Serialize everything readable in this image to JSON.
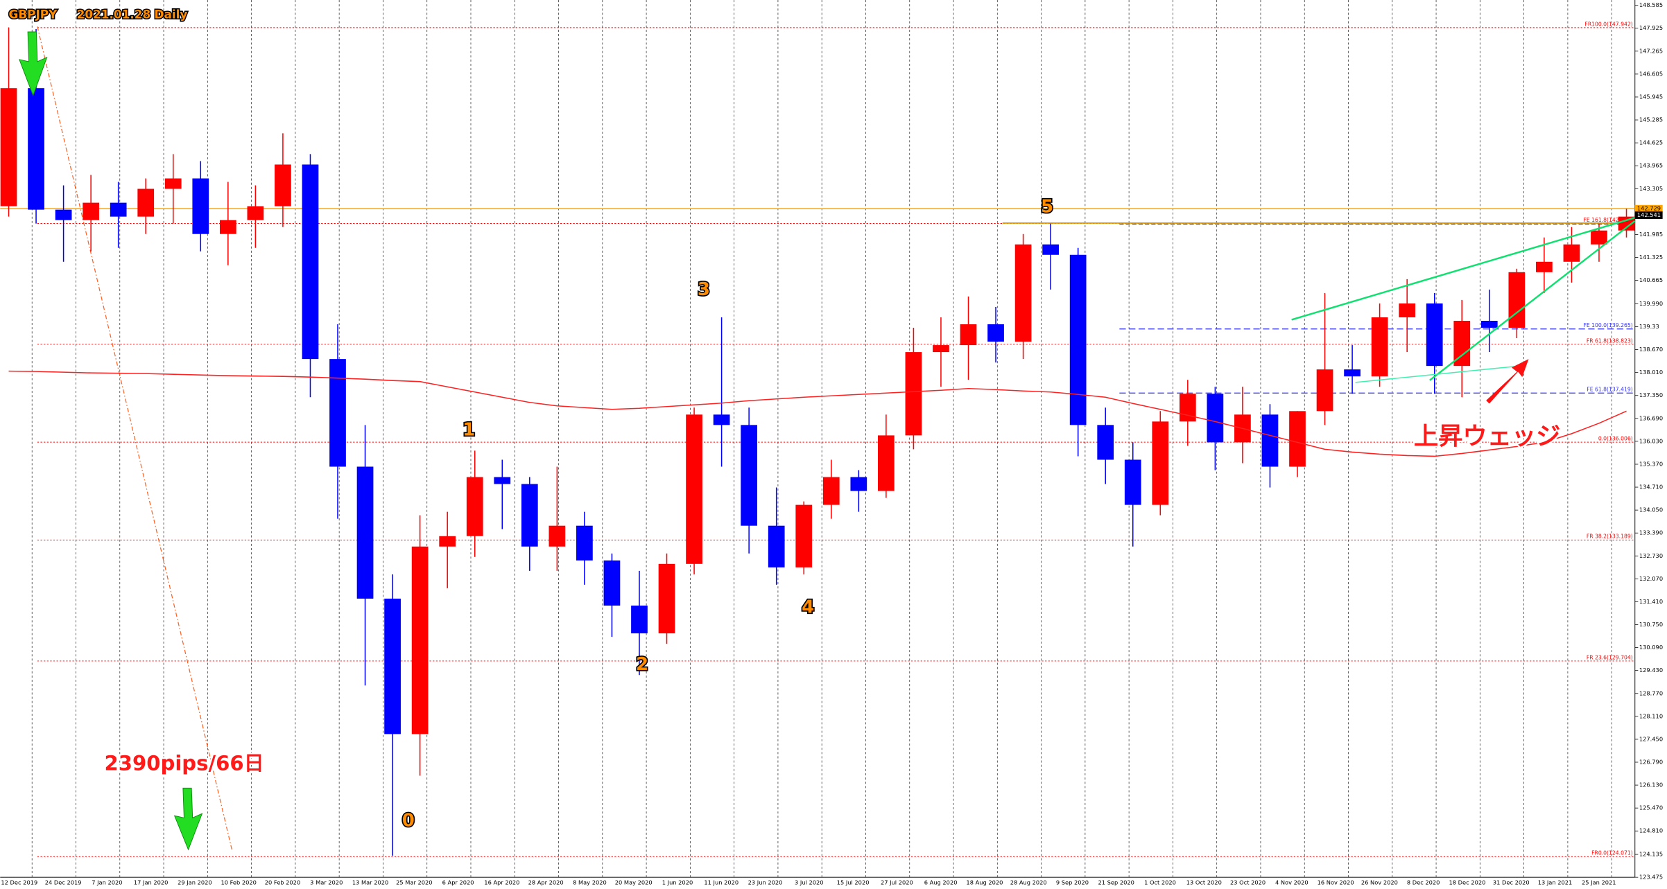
{
  "chart_data": {
    "type": "candlestick",
    "title_parts": [
      "GBPJPY",
      "2021.01.28",
      "Daily"
    ],
    "open": [
      142.8,
      146.2,
      142.7,
      142.4,
      142.9,
      142.5,
      143.3,
      143.6,
      142.0,
      142.4,
      142.8,
      144.0,
      138.4,
      135.3,
      131.5,
      127.6,
      133.0,
      133.3,
      135.0,
      134.8,
      133.0,
      133.6,
      132.6,
      131.3,
      130.5,
      132.5,
      136.8,
      136.5,
      133.6,
      132.4,
      134.2,
      135.0,
      134.6,
      136.2,
      138.6,
      138.8,
      139.4,
      138.9,
      141.7,
      141.4,
      136.5,
      135.5,
      134.2,
      136.6,
      137.4,
      136.0,
      136.8,
      135.3,
      136.9,
      138.1,
      137.9,
      139.6,
      140.0,
      138.2,
      139.5,
      139.3,
      140.9,
      141.2,
      141.7,
      142.1
    ],
    "high": [
      147.95,
      147.9,
      143.4,
      143.7,
      143.5,
      143.6,
      144.3,
      144.1,
      143.5,
      143.4,
      144.9,
      144.3,
      139.4,
      136.5,
      132.2,
      133.9,
      134.0,
      135.76,
      135.5,
      135.0,
      135.3,
      134.0,
      132.8,
      132.3,
      132.8,
      137.0,
      139.6,
      137.0,
      134.7,
      134.3,
      135.5,
      135.2,
      136.8,
      139.3,
      139.6,
      140.2,
      139.9,
      142.0,
      142.3,
      141.6,
      137.0,
      136.0,
      136.9,
      137.8,
      137.6,
      137.6,
      137.1,
      136.9,
      140.3,
      138.8,
      140.0,
      140.7,
      140.3,
      140.1,
      140.4,
      141.0,
      141.9,
      142.2,
      142.3,
      142.73
    ],
    "low": [
      142.5,
      142.3,
      141.2,
      141.5,
      141.6,
      142.0,
      142.3,
      141.5,
      141.1,
      141.6,
      142.2,
      137.3,
      133.8,
      129.0,
      124.1,
      126.4,
      131.8,
      132.7,
      133.5,
      132.3,
      132.3,
      131.9,
      130.4,
      129.3,
      130.2,
      132.2,
      135.3,
      132.8,
      131.9,
      132.2,
      133.8,
      134.0,
      134.4,
      135.8,
      137.6,
      137.8,
      138.3,
      138.4,
      140.4,
      135.6,
      134.8,
      133.0,
      133.9,
      135.9,
      135.2,
      135.4,
      134.7,
      135.0,
      136.5,
      137.4,
      137.6,
      138.6,
      137.4,
      137.3,
      138.6,
      139.0,
      140.3,
      140.6,
      141.2,
      141.9
    ],
    "close": [
      146.2,
      142.7,
      142.4,
      142.9,
      142.5,
      143.3,
      143.6,
      142.0,
      142.4,
      142.8,
      144.0,
      138.4,
      135.3,
      131.5,
      127.6,
      133.0,
      133.3,
      135.0,
      134.8,
      133.0,
      133.6,
      132.6,
      131.3,
      130.5,
      132.5,
      136.8,
      136.5,
      133.6,
      132.4,
      134.2,
      135.0,
      134.6,
      136.2,
      138.6,
      138.8,
      139.4,
      138.9,
      141.7,
      141.4,
      136.5,
      135.5,
      134.2,
      136.6,
      137.4,
      136.0,
      136.8,
      135.3,
      136.9,
      138.1,
      137.9,
      139.6,
      140.0,
      138.2,
      139.5,
      139.3,
      140.9,
      141.2,
      141.7,
      142.1,
      142.5
    ],
    "up_color": "#ff0000",
    "down_color": "#0000ff",
    "ma": {
      "color": "#ff2020",
      "values": [
        138.05,
        138.04,
        138.02,
        138.0,
        137.99,
        137.98,
        137.96,
        137.94,
        137.92,
        137.91,
        137.9,
        137.88,
        137.85,
        137.82,
        137.78,
        137.75,
        137.6,
        137.45,
        137.3,
        137.15,
        137.05,
        137.0,
        136.95,
        136.98,
        137.03,
        137.08,
        137.13,
        137.2,
        137.25,
        137.3,
        137.34,
        137.38,
        137.42,
        137.46,
        137.5,
        137.55,
        137.52,
        137.48,
        137.45,
        137.38,
        137.3,
        137.12,
        136.95,
        136.78,
        136.6,
        136.4,
        136.2,
        136.0,
        135.8,
        135.72,
        135.66,
        135.62,
        135.6,
        135.68,
        135.78,
        135.88,
        136.0,
        136.25,
        136.55,
        136.9
      ]
    },
    "xticks": [
      "12 Dec 2019",
      "24 Dec 2019",
      "7 Jan 2020",
      "17 Jan 2020",
      "29 Jan 2020",
      "10 Feb 2020",
      "20 Feb 2020",
      "3 Mar 2020",
      "13 Mar 2020",
      "25 Mar 2020",
      "6 Apr 2020",
      "16 Apr 2020",
      "28 Apr 2020",
      "8 May 2020",
      "20 May 2020",
      "1 Jun 2020",
      "11 Jun 2020",
      "23 Jun 2020",
      "3 Jul 2020",
      "15 Jul 2020",
      "27 Jul 2020",
      "6 Aug 2020",
      "18 Aug 2020",
      "28 Aug 2020",
      "9 Sep 2020",
      "21 Sep 2020",
      "1 Oct 2020",
      "13 Oct 2020",
      "23 Oct 2020",
      "4 Nov 2020",
      "16 Nov 2020",
      "26 Nov 2020",
      "8 Dec 2020",
      "18 Dec 2020",
      "31 Dec 2020",
      "13 Jan 2021",
      "25 Jan 2021"
    ],
    "ylim": [
      123.475,
      148.585
    ],
    "yticks": [
      148.585,
      147.925,
      147.265,
      146.605,
      145.945,
      145.285,
      144.625,
      143.965,
      143.305,
      141.985,
      141.325,
      140.665,
      {
        "value": 139.99,
        "label": "139.990"
      },
      139.33,
      {
        "value": 138.67,
        "label": "138.670"
      },
      {
        "value": 138.01,
        "label": "138.010"
      },
      {
        "value": 137.35,
        "label": "137.350"
      },
      {
        "value": 136.69,
        "label": "136.690"
      },
      {
        "value": 136.03,
        "label": "136.030"
      },
      {
        "value": 135.37,
        "label": "135.370"
      },
      {
        "value": 134.71,
        "label": "134.710"
      },
      {
        "value": 134.05,
        "label": "134.050"
      },
      {
        "value": 133.39,
        "label": "133.390"
      },
      {
        "value": 132.73,
        "label": "132.730"
      },
      {
        "value": 132.07,
        "label": "132.070"
      },
      {
        "value": 131.41,
        "label": "131.410"
      },
      {
        "value": 130.75,
        "label": "130.750"
      },
      {
        "value": 130.09,
        "label": "130.090"
      },
      {
        "value": 129.43,
        "label": "129.430"
      },
      {
        "value": 128.77,
        "label": "128.770"
      },
      {
        "value": 128.11,
        "label": "128.110"
      },
      {
        "value": 127.45,
        "label": "127.450"
      },
      {
        "value": 126.79,
        "label": "126.790"
      },
      {
        "value": 126.13,
        "label": "126.130"
      },
      {
        "value": 125.47,
        "label": "125.470"
      },
      {
        "value": 124.81,
        "label": "124.810"
      },
      124.135,
      123.475
    ],
    "levels": [
      {
        "label": "FR100.0(147.942)",
        "value": 147.942,
        "color": "#ff0000",
        "style": "dotted"
      },
      {
        "label": "FE 161.8(142.303)",
        "value": 142.303,
        "color": "#ff0000",
        "style": "dotted"
      },
      {
        "label": "FE 100.0(139.265)",
        "value": 139.265,
        "color": "#3030ff",
        "style": "dashed"
      },
      {
        "label": "FR 61.8(138.823)",
        "value": 138.823,
        "color": "#ff0000",
        "style": "dotted"
      },
      {
        "label": "FE 61.8(137.419)",
        "value": 137.419,
        "color": "#3030ff",
        "style": "dashed"
      },
      {
        "label": "0.0(136.006)",
        "value": 136.006,
        "color": "#ff0000",
        "style": "dotted"
      },
      {
        "label": "FR 38.2(133.189)",
        "value": 133.189,
        "color": "#ff0000",
        "style": "dotted"
      },
      {
        "label": "FR 23.6(129.704)",
        "value": 129.704,
        "color": "#ff0000",
        "style": "dotted"
      },
      {
        "label": "FR0.0(124.071)",
        "value": 124.071,
        "color": "#ff0000",
        "style": "dotted"
      }
    ],
    "price_markers": [
      {
        "value": 142.729,
        "color": "#ffa500"
      },
      {
        "value": 142.541,
        "color": "#000000"
      }
    ],
    "waves": [
      "0",
      "1",
      "2",
      "3",
      "4",
      "5"
    ],
    "notes": [
      "2390pips/66日",
      "上昇ウェッジ"
    ]
  }
}
